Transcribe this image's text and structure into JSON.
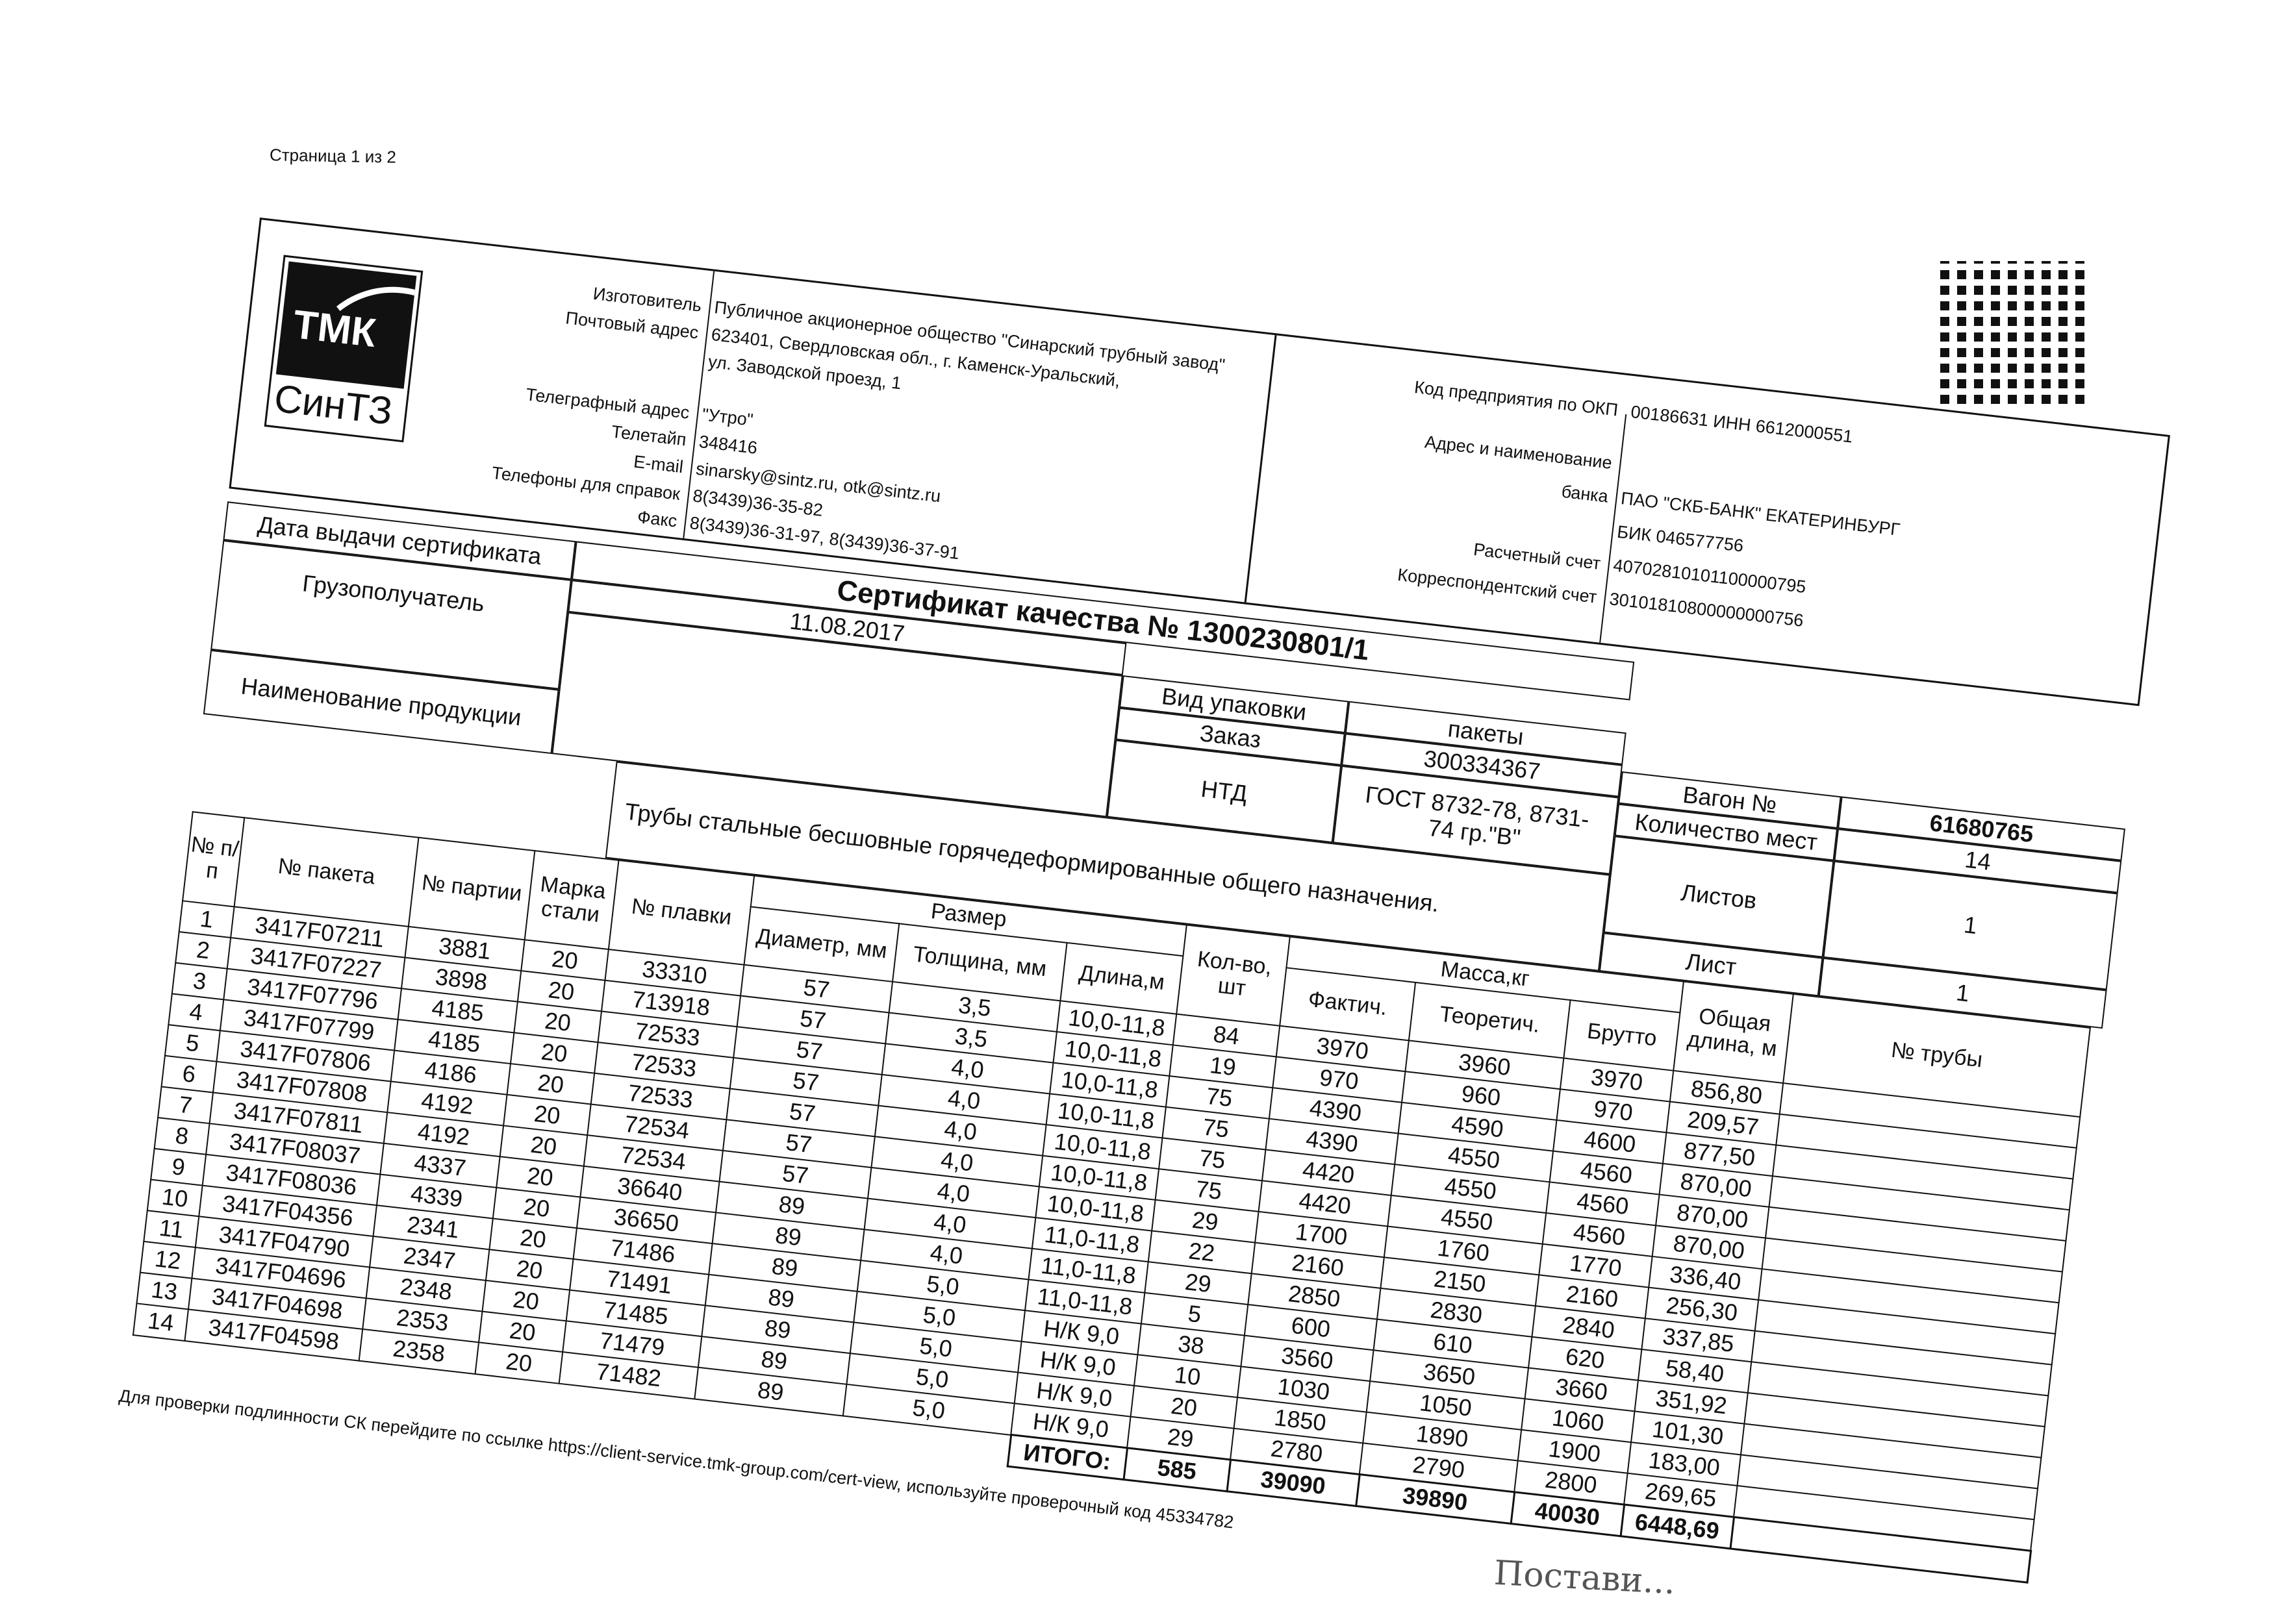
{
  "page_label": "Страница 1 из 2",
  "header": {
    "logo": {
      "top": "ТМК",
      "bottom": "СинТЗ"
    },
    "left": [
      {
        "label": "Изготовитель",
        "value": "Публичное акционерное общество \"Синарский трубный завод\""
      },
      {
        "label": "Почтовый адрес",
        "value": "623401, Свердловская обл., г. Каменск-Уральский,"
      },
      {
        "label": "",
        "value": "ул. Заводской проезд, 1"
      },
      {
        "label": "Телеграфный адрес",
        "value": "\"Утро\""
      },
      {
        "label": "Телетайп",
        "value": "348416"
      },
      {
        "label": "E-mail",
        "value": "sinarsky@sintz.ru, otk@sintz.ru"
      },
      {
        "label": "Телефоны для справок",
        "value": "8(3439)36-35-82"
      },
      {
        "label": "Факс",
        "value": "8(3439)36-31-97, 8(3439)36-37-91"
      }
    ],
    "right": [
      {
        "label": "Код предприятия по ОКП",
        "value": "00186631 ИНН 6612000551"
      },
      {
        "label": "Адрес и наименование",
        "value": ""
      },
      {
        "label": "банка",
        "value": "ПАО \"СКБ-БАНК\" ЕКАТЕРИНБУРГ"
      },
      {
        "label": "",
        "value": "БИК 046577756"
      },
      {
        "label": "Расчетный счет",
        "value": "40702810101100000795"
      },
      {
        "label": "Корреспондентский счет",
        "value": "30101810800000000756"
      }
    ]
  },
  "cert": {
    "issue_date_label": "Дата выдачи сертификата",
    "title": "Сертификат качества №  1300230801/1",
    "issue_date": "11.08.2017",
    "consignee_label": "Грузополучатель",
    "packing_label": "Вид упаковки",
    "packing": "пакеты",
    "order_label": "Заказ",
    "order": "300334367",
    "ntd_label": "НТД",
    "ntd": "ГОСТ 8732-78, 8731-74 гр.\"В\"",
    "wagon_label": "Вагон  №",
    "wagon": "61680765",
    "places_label": "Количество мест",
    "places": "14",
    "sheets_label": "Листов",
    "sheets": "1",
    "sheet_label": "Лист",
    "sheet": "1",
    "product_label": "Наименование продукции",
    "product": "Трубы стальные бесшовные горячедеформированные общего назначения."
  },
  "table": {
    "headers": {
      "num": "№ п/п",
      "package": "№ пакета",
      "batch": "№ партии",
      "steel": "Марка стали",
      "heat": "№ плавки",
      "size": "Размер",
      "diameter": "Диаметр, мм",
      "thickness": "Толщина, мм",
      "length": "Длина,м",
      "qty": "Кол-во, шт",
      "mass": "Масса,кг",
      "actual": "Фактич.",
      "theor": "Теоретич.",
      "gross": "Брутто",
      "total_length": "Общая длина, м",
      "pipe_no": "№ трубы"
    },
    "rows": [
      [
        "1",
        "3417F07211",
        "3881",
        "20",
        "33310",
        "57",
        "3,5",
        "10,0-11,8",
        "84",
        "3970",
        "3960",
        "3970",
        "856,80",
        ""
      ],
      [
        "2",
        "3417F07227",
        "3898",
        "20",
        "713918",
        "57",
        "3,5",
        "10,0-11,8",
        "19",
        "970",
        "960",
        "970",
        "209,57",
        ""
      ],
      [
        "3",
        "3417F07796",
        "4185",
        "20",
        "72533",
        "57",
        "4,0",
        "10,0-11,8",
        "75",
        "4390",
        "4590",
        "4600",
        "877,50",
        ""
      ],
      [
        "4",
        "3417F07799",
        "4185",
        "20",
        "72533",
        "57",
        "4,0",
        "10,0-11,8",
        "75",
        "4390",
        "4550",
        "4560",
        "870,00",
        ""
      ],
      [
        "5",
        "3417F07806",
        "4186",
        "20",
        "72533",
        "57",
        "4,0",
        "10,0-11,8",
        "75",
        "4420",
        "4550",
        "4560",
        "870,00",
        ""
      ],
      [
        "6",
        "3417F07808",
        "4192",
        "20",
        "72534",
        "57",
        "4,0",
        "10,0-11,8",
        "75",
        "4420",
        "4550",
        "4560",
        "870,00",
        ""
      ],
      [
        "7",
        "3417F07811",
        "4192",
        "20",
        "72534",
        "57",
        "4,0",
        "10,0-11,8",
        "29",
        "1700",
        "1760",
        "1770",
        "336,40",
        ""
      ],
      [
        "8",
        "3417F08037",
        "4337",
        "20",
        "36640",
        "89",
        "4,0",
        "11,0-11,8",
        "22",
        "2160",
        "2150",
        "2160",
        "256,30",
        ""
      ],
      [
        "9",
        "3417F08036",
        "4339",
        "20",
        "36650",
        "89",
        "4,0",
        "11,0-11,8",
        "29",
        "2850",
        "2830",
        "2840",
        "337,85",
        ""
      ],
      [
        "10",
        "3417F04356",
        "2341",
        "20",
        "71486",
        "89",
        "5,0",
        "11,0-11,8",
        "5",
        "600",
        "610",
        "620",
        "58,40",
        ""
      ],
      [
        "11",
        "3417F04790",
        "2347",
        "20",
        "71491",
        "89",
        "5,0",
        "Н/К 9,0",
        "38",
        "3560",
        "3650",
        "3660",
        "351,92",
        ""
      ],
      [
        "12",
        "3417F04696",
        "2348",
        "20",
        "71485",
        "89",
        "5,0",
        "Н/К 9,0",
        "10",
        "1030",
        "1050",
        "1060",
        "101,30",
        ""
      ],
      [
        "13",
        "3417F04698",
        "2353",
        "20",
        "71479",
        "89",
        "5,0",
        "Н/К 9,0",
        "20",
        "1850",
        "1890",
        "1900",
        "183,00",
        ""
      ],
      [
        "14",
        "3417F04598",
        "2358",
        "20",
        "71482",
        "89",
        "5,0",
        "Н/К 9,0",
        "29",
        "2780",
        "2790",
        "2800",
        "269,65",
        ""
      ]
    ],
    "total": {
      "label": "ИТОГО:",
      "qty": "585",
      "actual": "39090",
      "theor": "39890",
      "gross": "40030",
      "total_length": "6448,69"
    }
  },
  "footer": "Для проверки подлинности СК перейдите по ссылке https://client-service.tmk-group.com/cert-view, используйте проверочный код  45334782",
  "stamp": "Постави..."
}
